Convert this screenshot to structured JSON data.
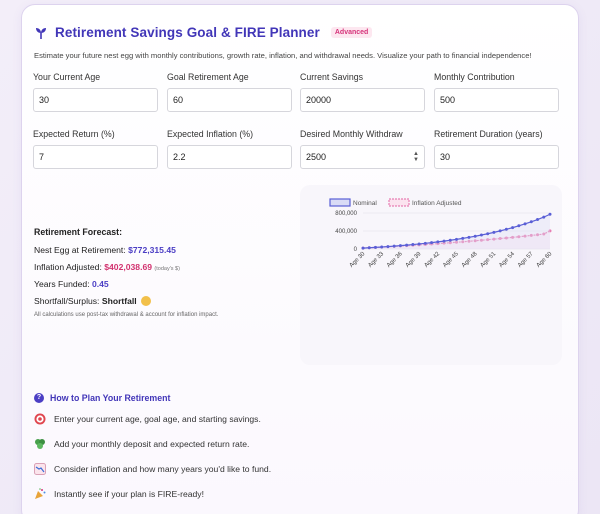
{
  "header": {
    "title": "Retirement Savings Goal & FIRE Planner",
    "badge": "Advanced",
    "subtitle": "Estimate your future nest egg with monthly contributions, growth rate, inflation, and withdrawal needs. Visualize your path to financial independence!"
  },
  "fields": [
    {
      "label": "Your Current Age",
      "value": "30"
    },
    {
      "label": "Goal Retirement Age",
      "value": "60"
    },
    {
      "label": "Current Savings",
      "value": "20000"
    },
    {
      "label": "Monthly Contribution",
      "value": "500"
    },
    {
      "label": "Expected Return (%)",
      "value": "7"
    },
    {
      "label": "Expected Inflation (%)",
      "value": "2.2"
    },
    {
      "label": "Desired Monthly Withdraw",
      "value": "2500"
    },
    {
      "label": "Retirement Duration (years)",
      "value": "30"
    }
  ],
  "forecast": {
    "heading": "Retirement Forecast:",
    "nest_egg_label": "Nest Egg at Retirement:",
    "nest_egg_value": "$772,315.45",
    "inflation_label": "Inflation Adjusted:",
    "inflation_value": "$402,038.69",
    "inflation_note": "(today's $)",
    "years_label": "Years Funded:",
    "years_value": "0.45",
    "shortfall_label": "Shortfall/Surplus:",
    "shortfall_value": "Shortfall",
    "note": "All calculations use post-tax withdrawal & account for inflation impact."
  },
  "plan": {
    "title": "How to Plan Your Retirement",
    "steps": [
      "Enter your current age, goal age, and starting savings.",
      "Add your monthly deposit and expected return rate.",
      "Consider inflation and how many years you'd like to fund.",
      "Instantly see if your plan is FIRE-ready!"
    ]
  },
  "colors": {
    "accent": "#4236b8",
    "nominal": "#5a5fd6",
    "inflation": "#e77fb3"
  },
  "chart_data": {
    "type": "line",
    "categories": [
      "Age 30",
      "Age 31",
      "Age 32",
      "Age 33",
      "Age 34",
      "Age 35",
      "Age 36",
      "Age 37",
      "Age 38",
      "Age 39",
      "Age 40",
      "Age 41",
      "Age 42",
      "Age 43",
      "Age 44",
      "Age 45",
      "Age 46",
      "Age 47",
      "Age 48",
      "Age 49",
      "Age 50",
      "Age 51",
      "Age 52",
      "Age 53",
      "Age 54",
      "Age 55",
      "Age 56",
      "Age 57",
      "Age 58",
      "Age 59",
      "Age 60"
    ],
    "tick_labels": [
      "Age 30",
      "Age 33",
      "Age 36",
      "Age 39",
      "Age 42",
      "Age 45",
      "Age 48",
      "Age 51",
      "Age 54",
      "Age 57",
      "Age 60"
    ],
    "y_ticks": [
      "800,000",
      "400,000",
      "0"
    ],
    "ylim": [
      0,
      800000
    ],
    "legend_position": "top",
    "series": [
      {
        "name": "Nominal",
        "values": [
          20000,
          27621,
          35786,
          44540,
          53924,
          63986,
          74770,
          86331,
          98721,
          112004,
          126244,
          141508,
          157869,
          175408,
          194209,
          214363,
          235969,
          259130,
          283955,
          310571,
          339103,
          369684,
          402474,
          437623,
          475296,
          515684,
          558979,
          605384,
          655128,
          708455,
          772315
        ]
      },
      {
        "name": "Inflation Adjusted",
        "values": [
          20000,
          27026,
          34264,
          41722,
          49399,
          57302,
          65434,
          73801,
          82409,
          91263,
          100366,
          109735,
          119380,
          129302,
          139508,
          150008,
          160802,
          171894,
          183303,
          195040,
          207101,
          219502,
          232252,
          245362,
          258838,
          272687,
          286917,
          301533,
          316558,
          332005,
          402039
        ]
      }
    ]
  }
}
